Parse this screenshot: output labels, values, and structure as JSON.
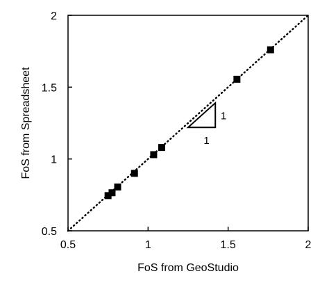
{
  "chart_data": {
    "type": "scatter",
    "xlabel": "FoS from GeoStudio",
    "ylabel": "FoS from Spreadsheet",
    "xlim": [
      0.5,
      2
    ],
    "ylim": [
      0.5,
      2
    ],
    "xticks": [
      0.5,
      1,
      1.5,
      2
    ],
    "yticks": [
      0.5,
      1,
      1.5,
      2
    ],
    "xtick_labels": [
      "0.5",
      "1",
      "1.5",
      "2"
    ],
    "ytick_labels": [
      "0.5",
      "1",
      "1.5",
      "2"
    ],
    "grid": false,
    "series": [
      {
        "marker": "square",
        "color": "#000000",
        "points": [
          {
            "x": 0.75,
            "y": 0.745
          },
          {
            "x": 0.775,
            "y": 0.765
          },
          {
            "x": 0.81,
            "y": 0.805
          },
          {
            "x": 0.915,
            "y": 0.9
          },
          {
            "x": 1.035,
            "y": 1.03
          },
          {
            "x": 1.085,
            "y": 1.08
          },
          {
            "x": 1.555,
            "y": 1.555
          },
          {
            "x": 1.765,
            "y": 1.76
          }
        ]
      }
    ],
    "reference_line": {
      "slope": 1,
      "intercept": 0,
      "style": "dotted",
      "color": "#000000"
    },
    "slope_triangle": {
      "x_start": 1.25,
      "x_end": 1.42,
      "y_start": 1.22,
      "horizontal_label": "1",
      "vertical_label": "1"
    }
  }
}
